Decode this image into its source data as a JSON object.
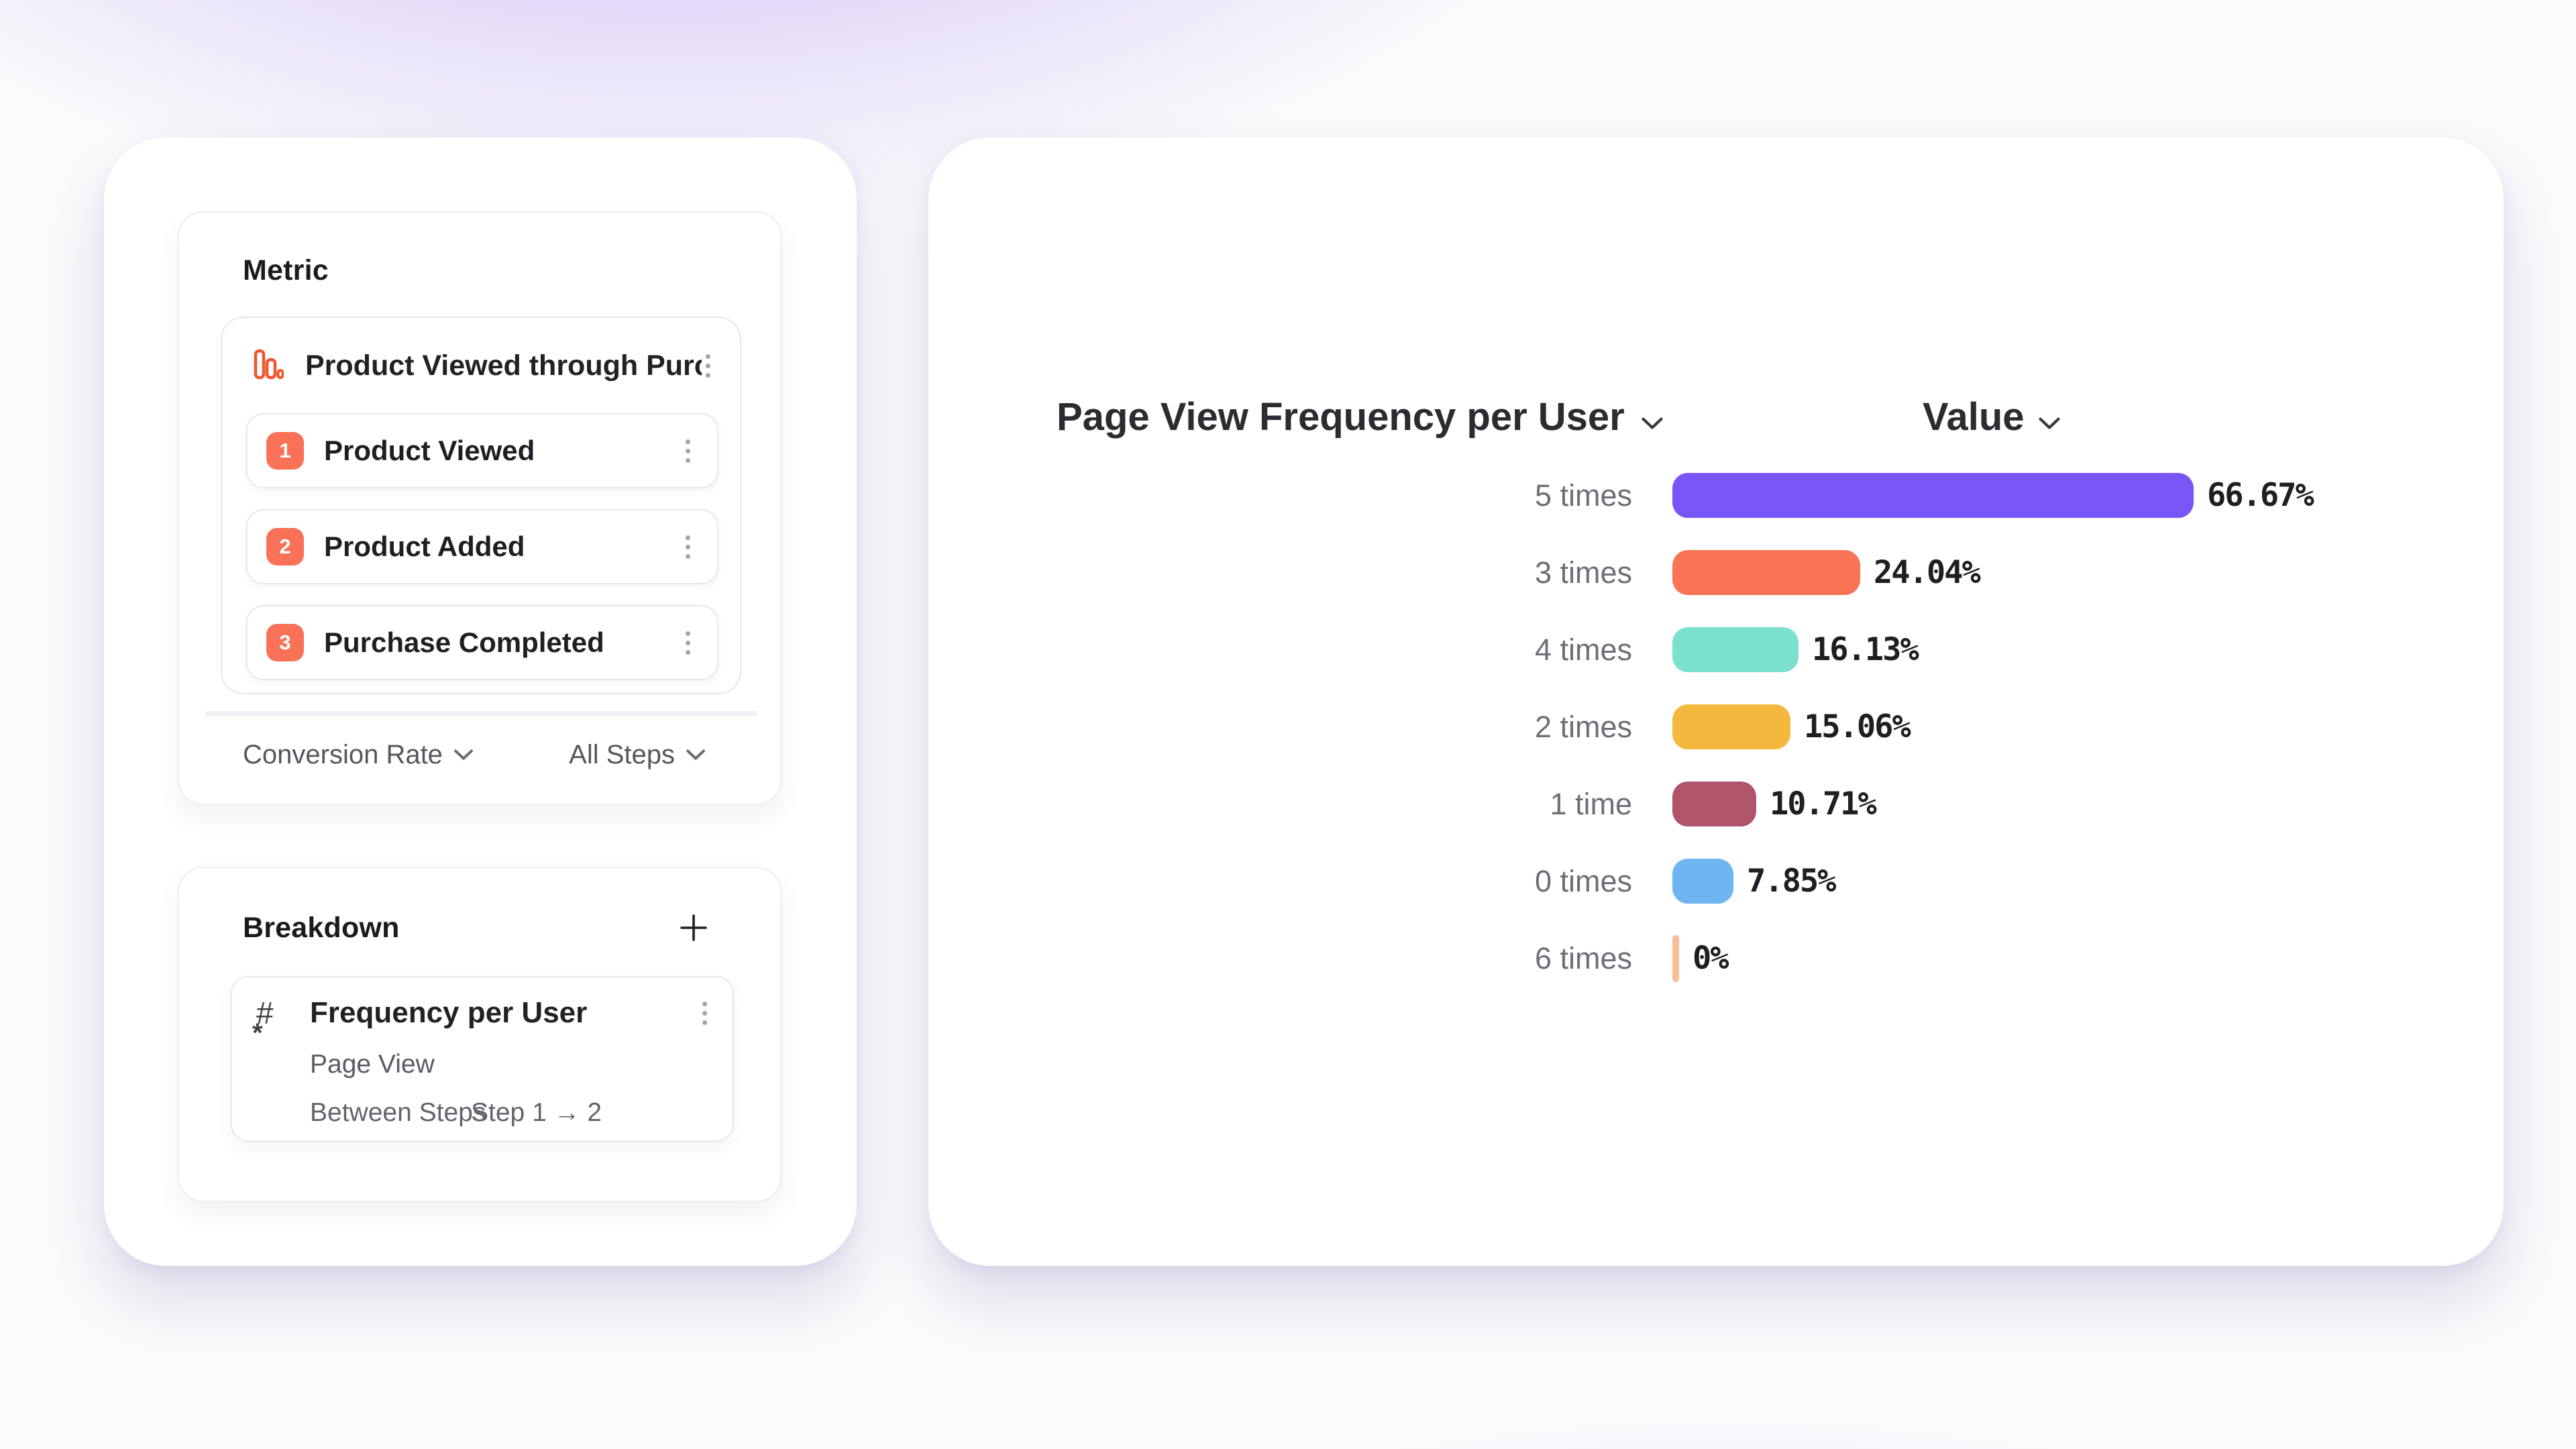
{
  "colors": {
    "accent_orange": "#F97156",
    "funnel_icon_orange": "#F2542D",
    "background_glow": "#8962E8"
  },
  "metric_panel": {
    "heading": "Metric",
    "funnel": {
      "title": "Product Viewed through Purch...",
      "icon": "funnel-bars-icon",
      "steps": [
        {
          "num": "1",
          "label": "Product Viewed"
        },
        {
          "num": "2",
          "label": "Product Added"
        },
        {
          "num": "3",
          "label": "Purchase Completed"
        }
      ]
    },
    "footer": {
      "left_dropdown": "Conversion Rate",
      "right_dropdown": "All Steps"
    }
  },
  "breakdown_panel": {
    "heading": "Breakdown",
    "item": {
      "icon": "number-property-icon",
      "title": "Frequency per User",
      "event": "Page View",
      "mode_label": "Between Steps",
      "range_label": "Step 1 → 2"
    }
  },
  "chart_header": {
    "title": "Page View Frequency per User",
    "value_label": "Value"
  },
  "chart_data": {
    "type": "bar",
    "orientation": "horizontal",
    "title": "Page View Frequency per User",
    "xlabel": "",
    "ylabel": "",
    "categories": [
      "5 times",
      "3 times",
      "4 times",
      "2 times",
      "1 time",
      "0 times",
      "6 times"
    ],
    "values": [
      66.67,
      24.04,
      16.13,
      15.06,
      10.71,
      7.85,
      0
    ],
    "value_labels": [
      "66.67%",
      "24.04%",
      "16.13%",
      "15.06%",
      "10.71%",
      "7.85%",
      "0%"
    ],
    "bar_colors": [
      "#7955F7",
      "#F97355",
      "#7CE0CE",
      "#F5B83E",
      "#B0546A",
      "#6FB5F1",
      "#FABD97"
    ],
    "xlim": [
      0,
      70
    ],
    "grid": false,
    "legend": false,
    "sorted_by": "value_desc"
  }
}
